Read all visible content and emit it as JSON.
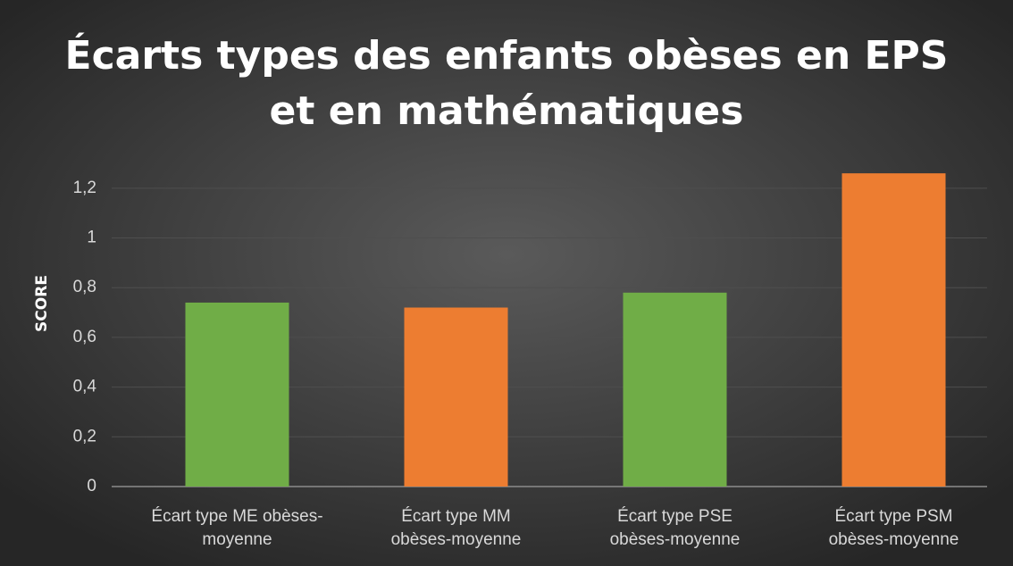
{
  "chart_data": {
    "type": "bar",
    "title": "Écarts types des enfants obèses en EPS\net en mathématiques",
    "ylabel": "SCORE",
    "categories": [
      "Écart type ME obèses-\nmoyenne",
      "Écart type MM\nobèses-moyenne",
      "Écart type PSE\nobèses-moyenne",
      "Écart type PSM\nobèses-moyenne"
    ],
    "values": [
      0.74,
      0.72,
      0.78,
      1.26
    ],
    "colors": [
      "#70ad47",
      "#ed7d31",
      "#70ad47",
      "#ed7d31"
    ],
    "ylim": [
      0,
      1.3
    ],
    "yticks": [
      0,
      {
        "value": 0.2,
        "label": "0,2"
      },
      {
        "value": 0.4,
        "label": "0,4"
      },
      {
        "value": 0.6,
        "label": "0,6"
      },
      {
        "value": 0.8,
        "label": "0,8"
      },
      1,
      {
        "value": 1.2,
        "label": "1,2"
      }
    ],
    "grid": true
  }
}
